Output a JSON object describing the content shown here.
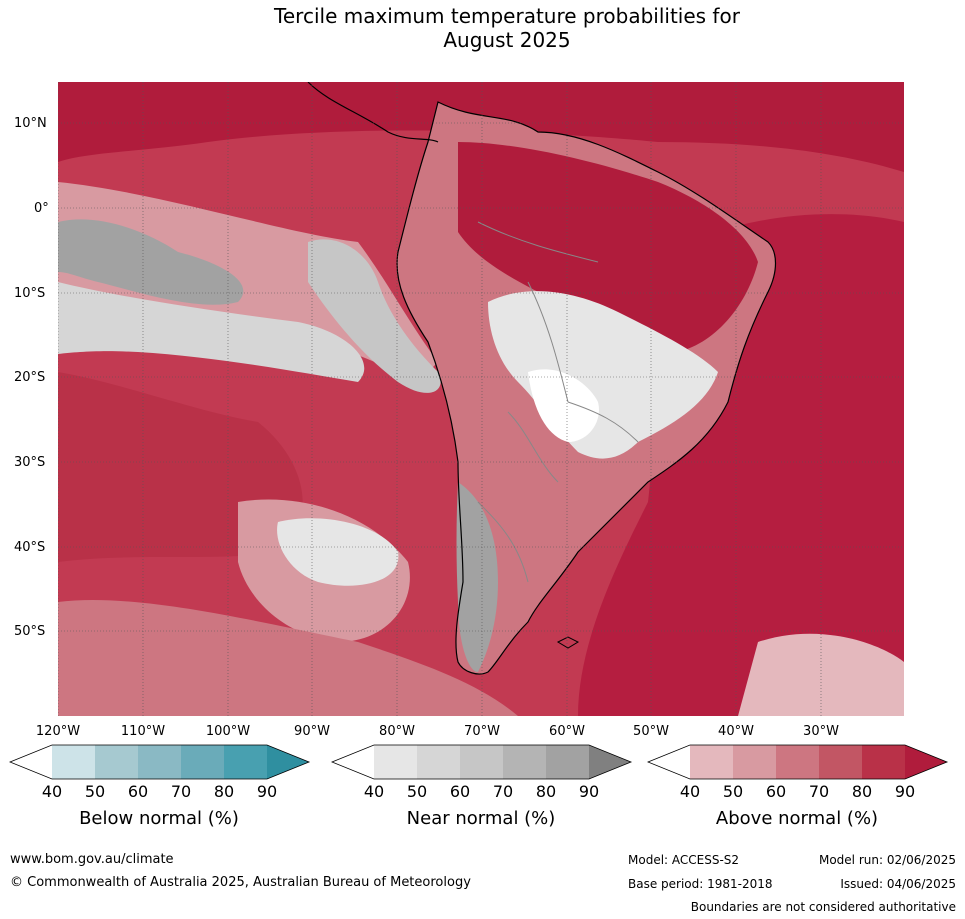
{
  "title": {
    "line1": "Tercile maximum temperature probabilities for",
    "line2": "August 2025"
  },
  "map": {
    "lat_labels": [
      "10°N",
      "0°",
      "10°S",
      "20°S",
      "30°S",
      "40°S",
      "50°S"
    ],
    "lon_labels": [
      "120°W",
      "110°W",
      "100°W",
      "90°W",
      "80°W",
      "70°W",
      "60°W",
      "50°W",
      "40°W",
      "30°W"
    ],
    "colors": {
      "ocean_above": "#b82042",
      "graticule": "#555555",
      "coastline": "#000000",
      "borders": "#888888"
    }
  },
  "colorbars": [
    {
      "title": "Below normal (%)",
      "ticks": [
        "40",
        "50",
        "60",
        "70",
        "80",
        "90"
      ],
      "colors": [
        "#ffffff",
        "#cde3e8",
        "#a6c9d0",
        "#8ab9c4",
        "#6aabb9",
        "#48a0b0",
        "#2f8fa0"
      ]
    },
    {
      "title": "Near normal (%)",
      "ticks": [
        "40",
        "50",
        "60",
        "70",
        "80",
        "90"
      ],
      "colors": [
        "#ffffff",
        "#e6e6e6",
        "#d6d6d6",
        "#c6c6c6",
        "#b4b4b4",
        "#a2a2a2",
        "#808080"
      ]
    },
    {
      "title": "Above normal (%)",
      "ticks": [
        "40",
        "50",
        "60",
        "70",
        "80",
        "90"
      ],
      "colors": [
        "#ffffff",
        "#e4b8bd",
        "#d89aa1",
        "#cd7681",
        "#c25664",
        "#b93148",
        "#b01c3c"
      ]
    }
  ],
  "footer": {
    "website": "www.bom.gov.au/climate",
    "copyright": "© Commonwealth of Australia 2025, Australian Bureau of Meteorology",
    "model": "Model: ACCESS-S2",
    "base_period": "Base period: 1981-2018",
    "model_run": "Model run: 02/06/2025",
    "issued": "Issued: 04/06/2025",
    "disclaimer": "Boundaries are not considered authoritative"
  }
}
